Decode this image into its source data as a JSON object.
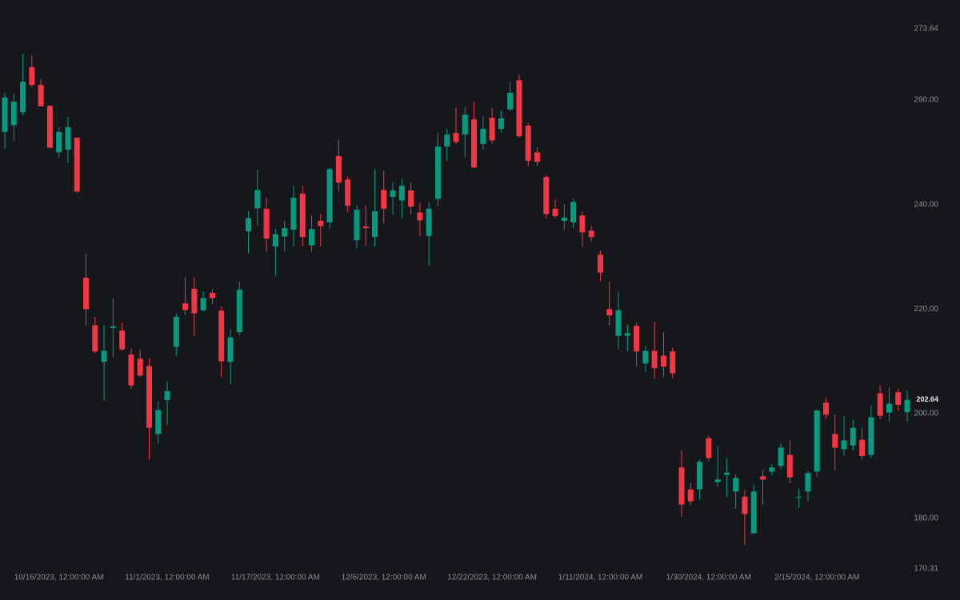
{
  "chart_data": {
    "type": "candlestick",
    "categories": [
      null,
      null,
      null,
      null,
      null,
      null,
      "10/16/2023, 12:00:00 AM",
      null,
      null,
      null,
      null,
      null,
      null,
      null,
      null,
      null,
      null,
      null,
      "11/1/2023, 12:00:00 AM",
      null,
      null,
      null,
      null,
      null,
      null,
      null,
      null,
      null,
      null,
      null,
      "11/17/2023, 12:00:00 AM",
      null,
      null,
      null,
      null,
      null,
      null,
      null,
      null,
      null,
      null,
      null,
      "12/6/2023, 12:00:00 AM",
      null,
      null,
      null,
      null,
      null,
      null,
      null,
      null,
      null,
      null,
      null,
      "12/22/2023, 12:00:00 AM",
      null,
      null,
      null,
      null,
      null,
      null,
      null,
      null,
      null,
      null,
      null,
      "1/11/2024, 12:00:00 AM",
      null,
      null,
      null,
      null,
      null,
      null,
      null,
      null,
      null,
      null,
      null,
      "1/30/2024, 12:00:00 AM",
      null,
      null,
      null,
      null,
      null,
      null,
      null,
      null,
      null,
      null,
      null,
      "2/15/2024, 12:00:00 AM",
      null,
      null,
      null,
      null,
      null,
      null,
      null,
      null,
      null,
      null
    ],
    "open": [
      253.9,
      255.2,
      257.7,
      266.3,
      262.9,
      258.9,
      250.0,
      250.5,
      252.8,
      226.0,
      216.9,
      209.9,
      216.4,
      215.9,
      211.3,
      210.5,
      209.1,
      196.1,
      202.6,
      212.8,
      221.1,
      223.9,
      219.8,
      223.1,
      219.7,
      209.9,
      215.6,
      234.9,
      239.3,
      239.2,
      232.0,
      233.9,
      235.2,
      242.1,
      232.2,
      236.9,
      236.6,
      249.3,
      244.8,
      233.2,
      235.8,
      233.8,
      242.8,
      241.5,
      240.8,
      242.7,
      238.5,
      234.0,
      241.1,
      251.1,
      253.7,
      253.4,
      256.3,
      251.6,
      256.6,
      254.5,
      258.2,
      263.8,
      255.1,
      250.0,
      245.3,
      239.2,
      236.9,
      236.6,
      237.9,
      235.0,
      230.4,
      220.0,
      214.9,
      214.9,
      216.8,
      209.6,
      212.0,
      211.1,
      211.9,
      189.7,
      185.5,
      185.5,
      195.3,
      186.9,
      188.3,
      185.1,
      184.1,
      177.1,
      188.0,
      188.9,
      190.0,
      192.1,
      184.0,
      185.1,
      188.9,
      202.1,
      196.1,
      193.2,
      193.9,
      195.0,
      192.1,
      203.9,
      200.2,
      204.1,
      200.3
    ],
    "high": [
      261.4,
      261.2,
      268.9,
      268.6,
      264.0,
      259.0,
      254.8,
      256.8,
      252.8,
      230.6,
      218.5,
      216.9,
      222.0,
      217.4,
      212.5,
      212.2,
      210.6,
      202.3,
      206.2,
      219.1,
      226.1,
      226.1,
      223.4,
      223.8,
      220.5,
      216.2,
      225.2,
      238.7,
      246.7,
      241.3,
      235.3,
      236.9,
      243.6,
      243.6,
      237.9,
      238.2,
      247.1,
      252.5,
      245.4,
      239.9,
      239.9,
      246.8,
      246.5,
      244.2,
      244.8,
      244.2,
      240.4,
      240.4,
      253.7,
      254.5,
      258.6,
      258.6,
      259.7,
      256.9,
      258.5,
      258.0,
      263.5,
      264.9,
      255.6,
      251.0,
      245.6,
      241.0,
      240.1,
      241.1,
      238.7,
      235.9,
      231.2,
      225.2,
      223.4,
      217.1,
      217.4,
      213.0,
      217.6,
      215.6,
      212.6,
      193.0,
      186.7,
      191.2,
      195.8,
      193.8,
      191.5,
      188.4,
      185.5,
      186.4,
      189.3,
      190.4,
      194.3,
      194.8,
      185.7,
      189.0,
      200.8,
      203.1,
      199.8,
      199.5,
      198.8,
      197.3,
      201.6,
      205.4,
      205.1,
      204.8,
      204.4
    ],
    "low": [
      250.7,
      252.2,
      257.1,
      262.5,
      258.8,
      250.8,
      249.0,
      248.0,
      242.2,
      216.8,
      211.6,
      202.5,
      210.8,
      212.0,
      204.7,
      207.0,
      191.2,
      194.3,
      197.8,
      211.0,
      218.9,
      214.9,
      219.5,
      220.9,
      207.0,
      205.6,
      215.0,
      230.6,
      236.0,
      230.9,
      226.4,
      231.0,
      232.0,
      232.0,
      231.0,
      232.0,
      235.5,
      242.5,
      238.5,
      231.6,
      232.0,
      232.0,
      236.4,
      238.1,
      237.4,
      238.1,
      234.0,
      228.3,
      239.8,
      248.4,
      251.6,
      249.1,
      247.0,
      250.5,
      251.7,
      253.8,
      257.9,
      252.8,
      247.4,
      247.4,
      237.4,
      237.4,
      235.2,
      235.5,
      232.0,
      233.0,
      225.4,
      216.9,
      212.3,
      212.0,
      209.0,
      208.0,
      206.7,
      207.0,
      206.8,
      180.2,
      182.5,
      183.5,
      190.9,
      186.0,
      184.0,
      181.8,
      174.9,
      177.0,
      182.6,
      188.2,
      189.4,
      186.7,
      182.0,
      183.2,
      188.0,
      199.0,
      189.2,
      192.0,
      193.0,
      191.2,
      191.5,
      198.9,
      198.5,
      200.6,
      198.5
    ],
    "close": [
      260.5,
      259.7,
      263.5,
      262.9,
      258.8,
      250.9,
      253.9,
      254.8,
      242.5,
      220.0,
      211.9,
      212.0,
      216.7,
      212.3,
      205.4,
      207.3,
      197.3,
      200.7,
      204.3,
      218.5,
      219.8,
      219.2,
      222.1,
      222.1,
      210.0,
      214.6,
      223.7,
      237.4,
      242.8,
      233.5,
      234.3,
      235.5,
      241.3,
      233.8,
      235.3,
      235.9,
      246.8,
      244.2,
      239.8,
      239.0,
      235.5,
      238.7,
      239.2,
      242.7,
      243.6,
      239.6,
      237.0,
      239.2,
      251.1,
      253.4,
      252.0,
      257.2,
      247.1,
      254.5,
      252.3,
      256.5,
      261.4,
      253.1,
      248.4,
      248.2,
      238.2,
      237.8,
      237.5,
      240.5,
      234.7,
      233.8,
      227.0,
      218.8,
      219.8,
      215.4,
      211.9,
      212.0,
      208.7,
      209.0,
      207.7,
      182.6,
      183.2,
      190.8,
      191.5,
      187.4,
      188.7,
      187.7,
      180.8,
      185.1,
      187.4,
      189.7,
      193.5,
      187.8,
      184.1,
      188.6,
      200.6,
      199.8,
      193.5,
      194.9,
      197.3,
      191.9,
      199.3,
      199.6,
      201.9,
      201.7,
      202.64
    ],
    "up_color": "#089981",
    "down_color": "#f23645",
    "ylim": [
      170.31,
      273.64
    ],
    "yticks": [
      {
        "value": 170.31,
        "label": "170.31"
      },
      {
        "value": 180,
        "label": "180.00"
      },
      {
        "value": 200,
        "label": "200.00"
      },
      {
        "value": 220,
        "label": "220.00"
      },
      {
        "value": 240,
        "label": "240.00"
      },
      {
        "value": 260,
        "label": "260.00"
      },
      {
        "value": 273.64,
        "label": "273.64"
      }
    ],
    "last_price": 202.64,
    "grid": false
  }
}
